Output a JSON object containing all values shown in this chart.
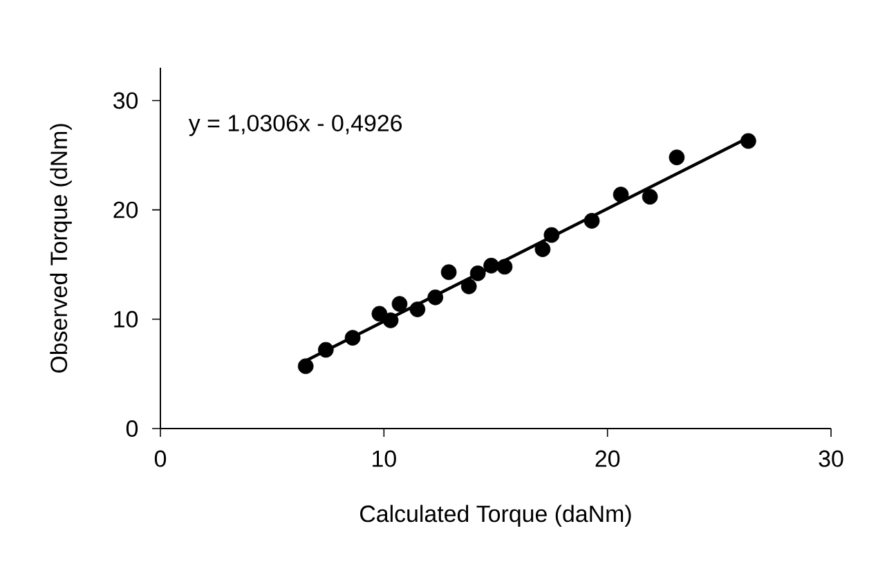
{
  "chart_data": {
    "type": "scatter",
    "xlabel": "Calculated Torque (daNm)",
    "ylabel": "Observed Torque (dNm)",
    "annotations": [
      "y = 1,0306x - 0,4926"
    ],
    "xlim": [
      0,
      30
    ],
    "ylim": [
      0,
      33
    ],
    "xticks": [
      0,
      10,
      20,
      30
    ],
    "yticks": [
      0,
      10,
      20,
      30
    ],
    "grid": false,
    "series": [
      {
        "marker": "circle",
        "color": "#000000",
        "x": [
          6.5,
          7.4,
          8.6,
          9.8,
          10.3,
          10.7,
          11.5,
          12.3,
          12.9,
          13.8,
          14.2,
          14.8,
          15.4,
          17.1,
          17.5,
          19.3,
          20.6,
          21.9,
          23.1,
          26.3
        ],
        "values": [
          5.7,
          7.2,
          8.3,
          10.5,
          9.9,
          11.4,
          10.9,
          12.0,
          14.3,
          13.0,
          14.2,
          14.9,
          14.8,
          16.4,
          17.7,
          19.0,
          21.4,
          21.2,
          24.8,
          26.3
        ]
      },
      {
        "type": "line",
        "marker": "none",
        "line_style": "solid",
        "color": "#000000",
        "x": [
          6.5,
          26.3
        ],
        "values": [
          6.2,
          26.6
        ]
      }
    ]
  }
}
